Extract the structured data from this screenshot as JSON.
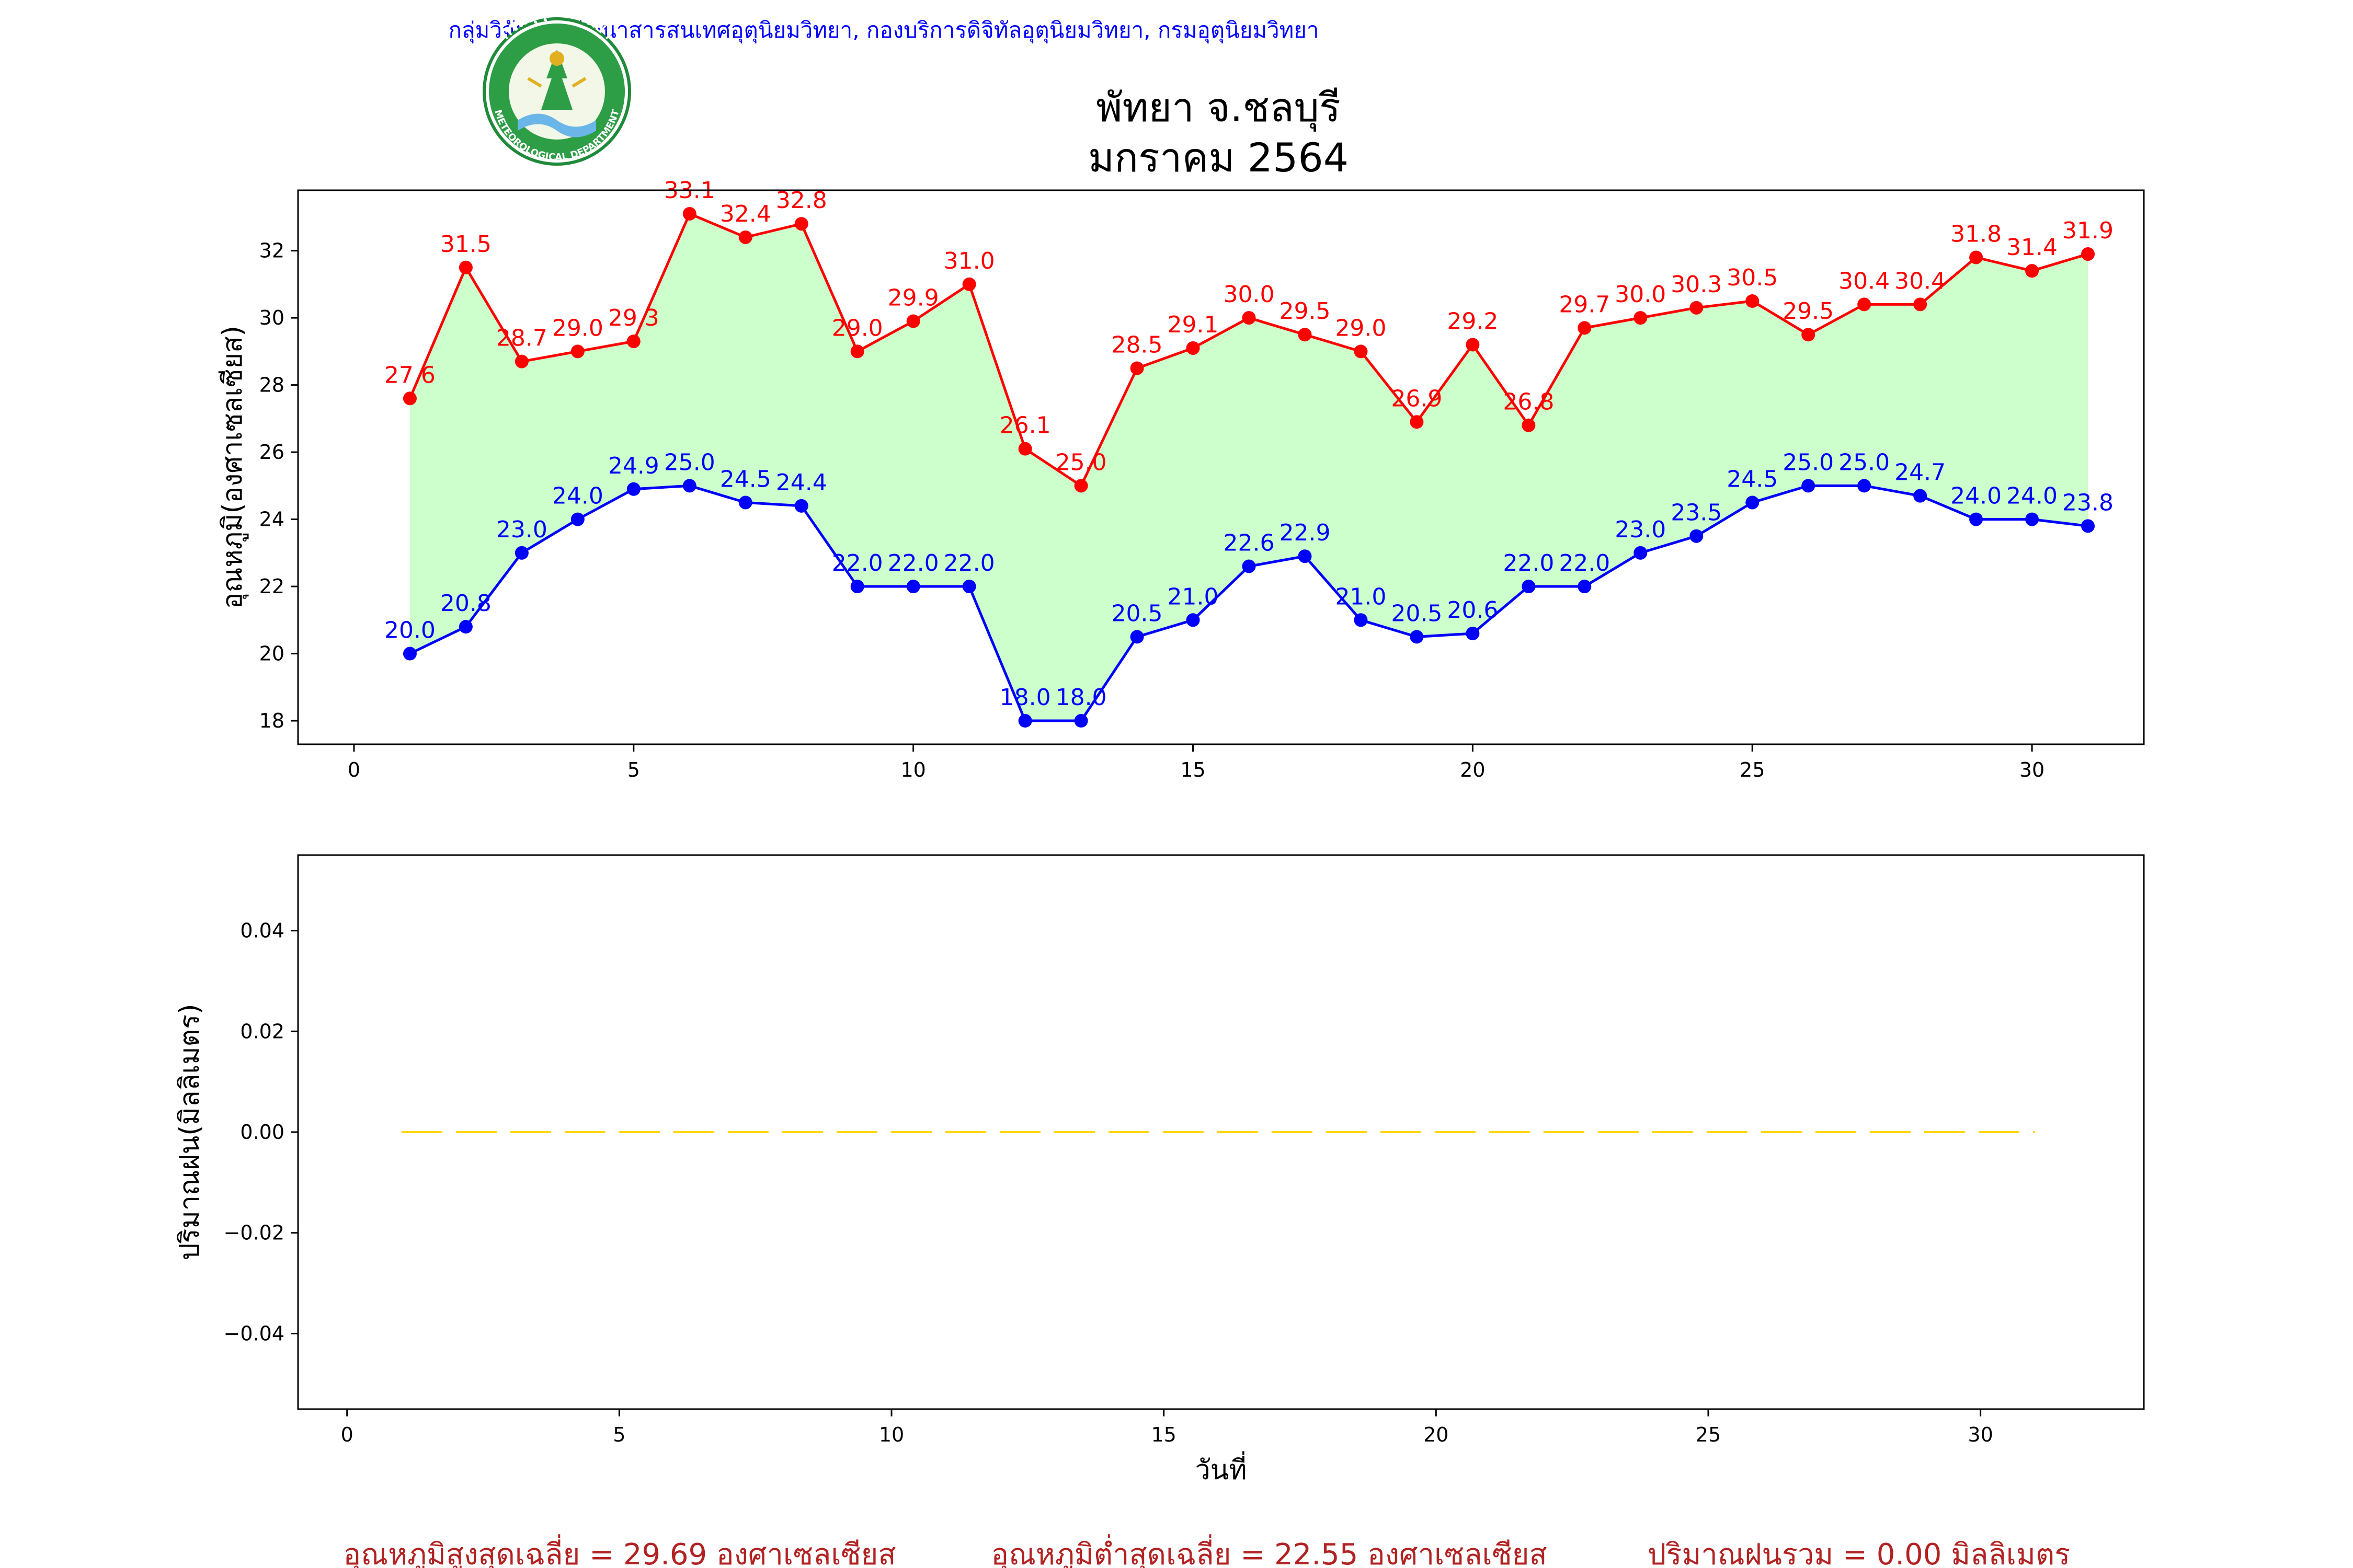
{
  "header": {
    "agency": "กลุ่มวิจัยและพัฒนาสารสนเทศอุตุนิยมวิทยา, กองบริการดิจิทัลอุตุนิยมวิทยา, กรมอุตุนิยมวิทยา",
    "logo": {
      "top_text": "กรมอุตุนิยมวิทยา",
      "bottom_text": "METEOROLOGICAL DEPARTMENT"
    }
  },
  "title": {
    "line1": "พัทยา จ.ชลบุรี",
    "line2": "มกราคม 2564"
  },
  "chart_data": [
    {
      "type": "line",
      "title": "พัทยา จ.ชลบุรี มกราคม 2564",
      "xlabel": "",
      "ylabel": "อุณหภูมิ(องศาเซลเซียส)",
      "x": [
        1,
        2,
        3,
        4,
        5,
        6,
        7,
        8,
        9,
        10,
        11,
        12,
        13,
        14,
        15,
        16,
        17,
        18,
        19,
        20,
        21,
        22,
        23,
        24,
        25,
        26,
        27,
        28,
        29,
        30,
        31
      ],
      "xlim": [
        -1,
        32
      ],
      "ylim": [
        17.3,
        33.8
      ],
      "xticks": [
        0,
        5,
        10,
        15,
        20,
        25,
        30
      ],
      "yticks": [
        18,
        20,
        22,
        24,
        26,
        28,
        30,
        32
      ],
      "grid": false,
      "fill_between": {
        "color": "#ccffcc"
      },
      "series": [
        {
          "key": "max",
          "color": "#ff0000",
          "values": [
            27.6,
            31.5,
            28.7,
            29.0,
            29.3,
            33.1,
            32.4,
            32.8,
            29.0,
            29.9,
            31.0,
            26.1,
            25.0,
            28.5,
            29.1,
            30.0,
            29.5,
            29.0,
            26.9,
            29.2,
            26.8,
            29.7,
            30.0,
            30.3,
            30.5,
            29.5,
            30.4,
            30.4,
            31.8,
            31.4,
            31.9
          ],
          "labels": [
            "27.6",
            "31.5",
            "28.7",
            "29.0",
            "29.3",
            "33.1",
            "32.4",
            "32.8",
            "29.0",
            "29.9",
            "31.0",
            "26.1",
            "25.0",
            "28.5",
            "29.1",
            "30.0",
            "29.5",
            "29.0",
            "26.9",
            "29.2",
            "26.8",
            "29.7",
            "30.0",
            "30.3",
            "30.5",
            "29.5",
            "30.4",
            "30.4",
            "31.8",
            "31.4",
            "31.9"
          ]
        },
        {
          "key": "min",
          "color": "#0000ff",
          "values": [
            20.0,
            20.8,
            23.0,
            24.0,
            24.9,
            25.0,
            24.5,
            24.4,
            22.0,
            22.0,
            22.0,
            18.0,
            18.0,
            20.5,
            21.0,
            22.6,
            22.9,
            21.0,
            20.5,
            20.6,
            22.0,
            22.0,
            23.0,
            23.5,
            24.5,
            25.0,
            25.0,
            24.7,
            24.0,
            24.0,
            23.8
          ],
          "labels": [
            "20.0",
            "20.8",
            "23.0",
            "24.0",
            "24.9",
            "25.0",
            "24.5",
            "24.4",
            "22.0",
            "22.0",
            "22.0",
            "18.0",
            "18.0",
            "20.5",
            "21.0",
            "22.6",
            "22.9",
            "21.0",
            "20.5",
            "20.6",
            "22.0",
            "22.0",
            "23.0",
            "23.5",
            "24.5",
            "25.0",
            "25.0",
            "24.7",
            "24.0",
            "24.0",
            "23.8"
          ]
        }
      ]
    },
    {
      "type": "line",
      "title": "",
      "xlabel": "วันที่",
      "ylabel": "ปริมาณฝน(มิลลิเมตร)",
      "x": [
        1,
        2,
        3,
        4,
        5,
        6,
        7,
        8,
        9,
        10,
        11,
        12,
        13,
        14,
        15,
        16,
        17,
        18,
        19,
        20,
        21,
        22,
        23,
        24,
        25,
        26,
        27,
        28,
        29,
        30,
        31
      ],
      "xlim": [
        -0.9,
        33.0
      ],
      "ylim": [
        -0.055,
        0.055
      ],
      "xticks": [
        0,
        5,
        10,
        15,
        20,
        25,
        30
      ],
      "yticks": [
        -0.04,
        -0.02,
        0.0,
        0.02,
        0.04
      ],
      "yticklabels": [
        "−0.04",
        "−0.02",
        "0.00",
        "0.02",
        "0.04"
      ],
      "grid": false,
      "series": [
        {
          "key": "rain",
          "color": "#ffd700",
          "linestyle": "dashed",
          "values": [
            0,
            0,
            0,
            0,
            0,
            0,
            0,
            0,
            0,
            0,
            0,
            0,
            0,
            0,
            0,
            0,
            0,
            0,
            0,
            0,
            0,
            0,
            0,
            0,
            0,
            0,
            0,
            0,
            0,
            0,
            0
          ]
        }
      ]
    }
  ],
  "footer": {
    "avg_max": "อุณหภูมิสูงสุดเฉลี่ย = 29.69 องศาเซลเซียส",
    "avg_min": "อุณหภูมิต่ำสุดเฉลี่ย = 22.55 องศาเซลเซียส",
    "total_rain": "ปริมาณฝนรวม = 0.00 มิลลิเมตร",
    "color": "#b22222"
  }
}
